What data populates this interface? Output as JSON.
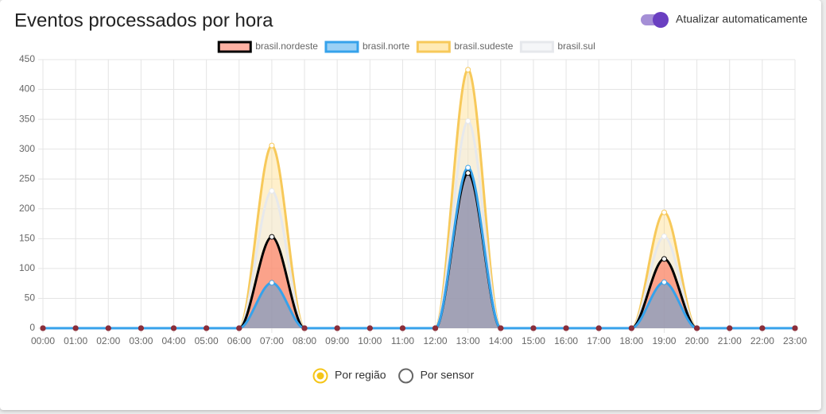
{
  "header": {
    "title": "Eventos processados por hora",
    "toggle_label": "Atualizar automaticamente",
    "toggle_on": true
  },
  "chart_data": {
    "type": "line",
    "categories": [
      "00:00",
      "01:00",
      "02:00",
      "03:00",
      "04:00",
      "05:00",
      "06:00",
      "07:00",
      "08:00",
      "09:00",
      "10:00",
      "11:00",
      "12:00",
      "13:00",
      "14:00",
      "15:00",
      "16:00",
      "17:00",
      "18:00",
      "19:00",
      "20:00",
      "21:00",
      "22:00",
      "23:00"
    ],
    "series": [
      {
        "name": "brasil.nordeste",
        "color": "#000000",
        "fill": "#ff6347",
        "values": [
          0,
          0,
          0,
          0,
          0,
          0,
          0,
          153,
          0,
          0,
          0,
          0,
          0,
          260,
          0,
          0,
          0,
          0,
          0,
          116,
          0,
          0,
          0,
          0
        ]
      },
      {
        "name": "brasil.norte",
        "color": "#36a2eb",
        "fill": "#36a2eb",
        "values": [
          0,
          0,
          0,
          0,
          0,
          0,
          0,
          76,
          0,
          0,
          0,
          0,
          0,
          269,
          0,
          0,
          0,
          0,
          0,
          77,
          0,
          0,
          0,
          0
        ]
      },
      {
        "name": "brasil.sudeste",
        "color": "#f7c95a",
        "fill": "#ffd56b",
        "values": [
          0,
          0,
          0,
          0,
          0,
          0,
          0,
          306,
          0,
          0,
          0,
          0,
          0,
          433,
          0,
          0,
          0,
          0,
          0,
          194,
          0,
          0,
          0,
          0
        ]
      },
      {
        "name": "brasil.sul",
        "color": "#e6e8ec",
        "fill": "#eceef2",
        "values": [
          0,
          0,
          0,
          0,
          0,
          0,
          0,
          230,
          0,
          0,
          0,
          0,
          0,
          347,
          0,
          0,
          0,
          0,
          0,
          154,
          0,
          0,
          0,
          0
        ]
      }
    ],
    "ylim": [
      0,
      450
    ],
    "yticks": [
      0,
      50,
      100,
      150,
      200,
      250,
      300,
      350,
      400,
      450
    ],
    "grid": true
  },
  "options": [
    {
      "label": "Por região",
      "selected": true
    },
    {
      "label": "Por sensor",
      "selected": false
    }
  ]
}
